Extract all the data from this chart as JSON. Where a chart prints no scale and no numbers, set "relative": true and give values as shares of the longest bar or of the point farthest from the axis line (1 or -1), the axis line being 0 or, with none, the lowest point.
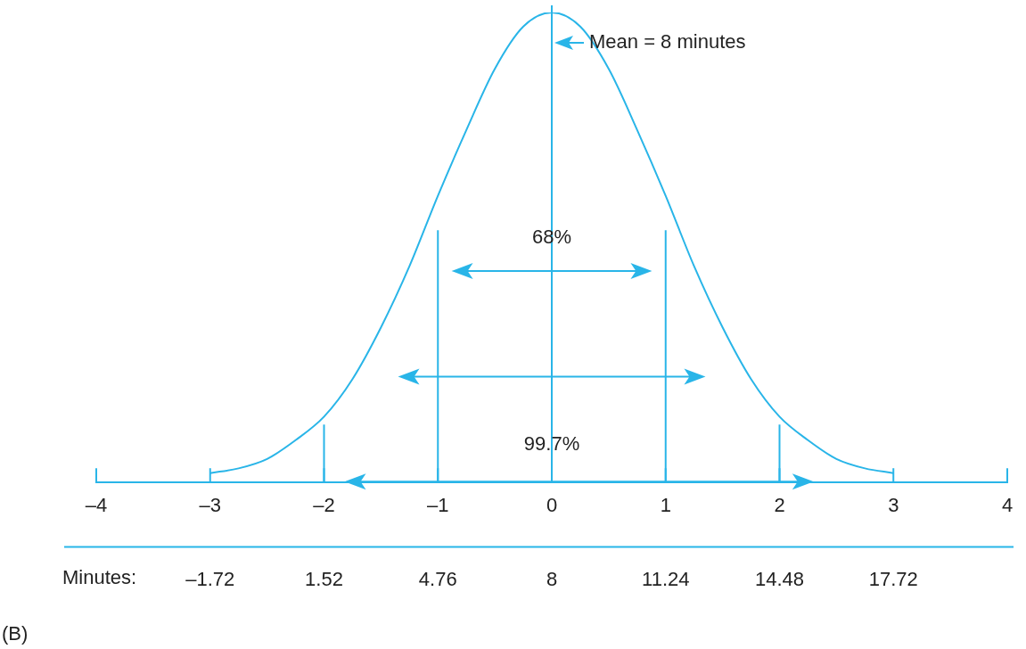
{
  "chart_data": {
    "type": "line",
    "relative": true,
    "x": [
      -3,
      -2.75,
      -2.5,
      -2.25,
      -2,
      -1.75,
      -1.5,
      -1.25,
      -1,
      -0.75,
      -0.5,
      -0.25,
      0,
      0.25,
      0.5,
      0.75,
      1,
      1.25,
      1.5,
      1.75,
      2,
      2.25,
      2.5,
      2.75,
      3
    ],
    "series": [
      {
        "color": "#29b5e8",
        "values": [
          0.02,
          0.03,
          0.05,
          0.09,
          0.14,
          0.22,
          0.33,
          0.46,
          0.61,
          0.75,
          0.88,
          0.97,
          1,
          0.97,
          0.88,
          0.75,
          0.61,
          0.46,
          0.33,
          0.22,
          0.14,
          0.09,
          0.05,
          0.03,
          0.02
        ]
      }
    ],
    "xlim": [
      -4,
      4
    ],
    "xticks": [
      {
        "value": -4,
        "label": "–4"
      },
      {
        "value": -3,
        "label": "–3"
      },
      {
        "value": -2,
        "label": "–2"
      },
      {
        "value": -1,
        "label": "–1"
      },
      0,
      1,
      2,
      3,
      4
    ],
    "x2label": "Minutes:",
    "x2lim": [
      -4.96,
      20.96
    ],
    "x2ticks": [
      {
        "value": -1.72,
        "label": "–1.72"
      },
      1.52,
      4.76,
      8,
      11.24,
      14.48,
      17.72
    ],
    "ref_lines": [
      {
        "axis": "x2",
        "value": 8,
        "label": "Mean = 8 minutes",
        "color": "#29b5e8"
      },
      {
        "axis": "x",
        "value": -1,
        "color": "#29b5e8"
      },
      {
        "axis": "x",
        "value": 1,
        "color": "#29b5e8"
      },
      {
        "axis": "x",
        "value": -2,
        "color": "#29b5e8"
      },
      {
        "axis": "x",
        "value": 2,
        "color": "#29b5e8"
      }
    ],
    "annotations": [
      "68%",
      "99.7%",
      "(B)"
    ],
    "grid": false,
    "legend": false,
    "marker": "none",
    "line_style": "solid"
  }
}
